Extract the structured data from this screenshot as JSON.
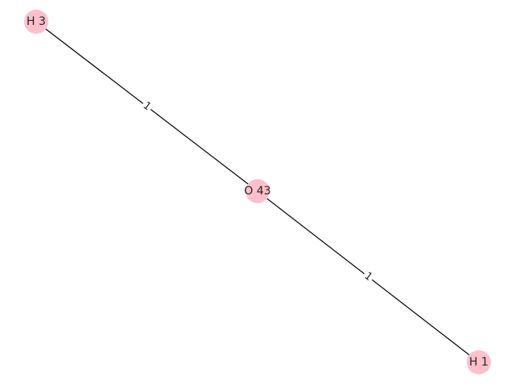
{
  "graph": {
    "node_color": "#ffc0cb",
    "edge_color": "#000000",
    "nodes": [
      {
        "id": "O43",
        "label": "O 43"
      },
      {
        "id": "H3",
        "label": "H 3"
      },
      {
        "id": "H1",
        "label": "H 1"
      }
    ],
    "edges": [
      {
        "source": "H3",
        "target": "O43",
        "label": "1"
      },
      {
        "source": "O43",
        "target": "H1",
        "label": "1"
      }
    ]
  }
}
